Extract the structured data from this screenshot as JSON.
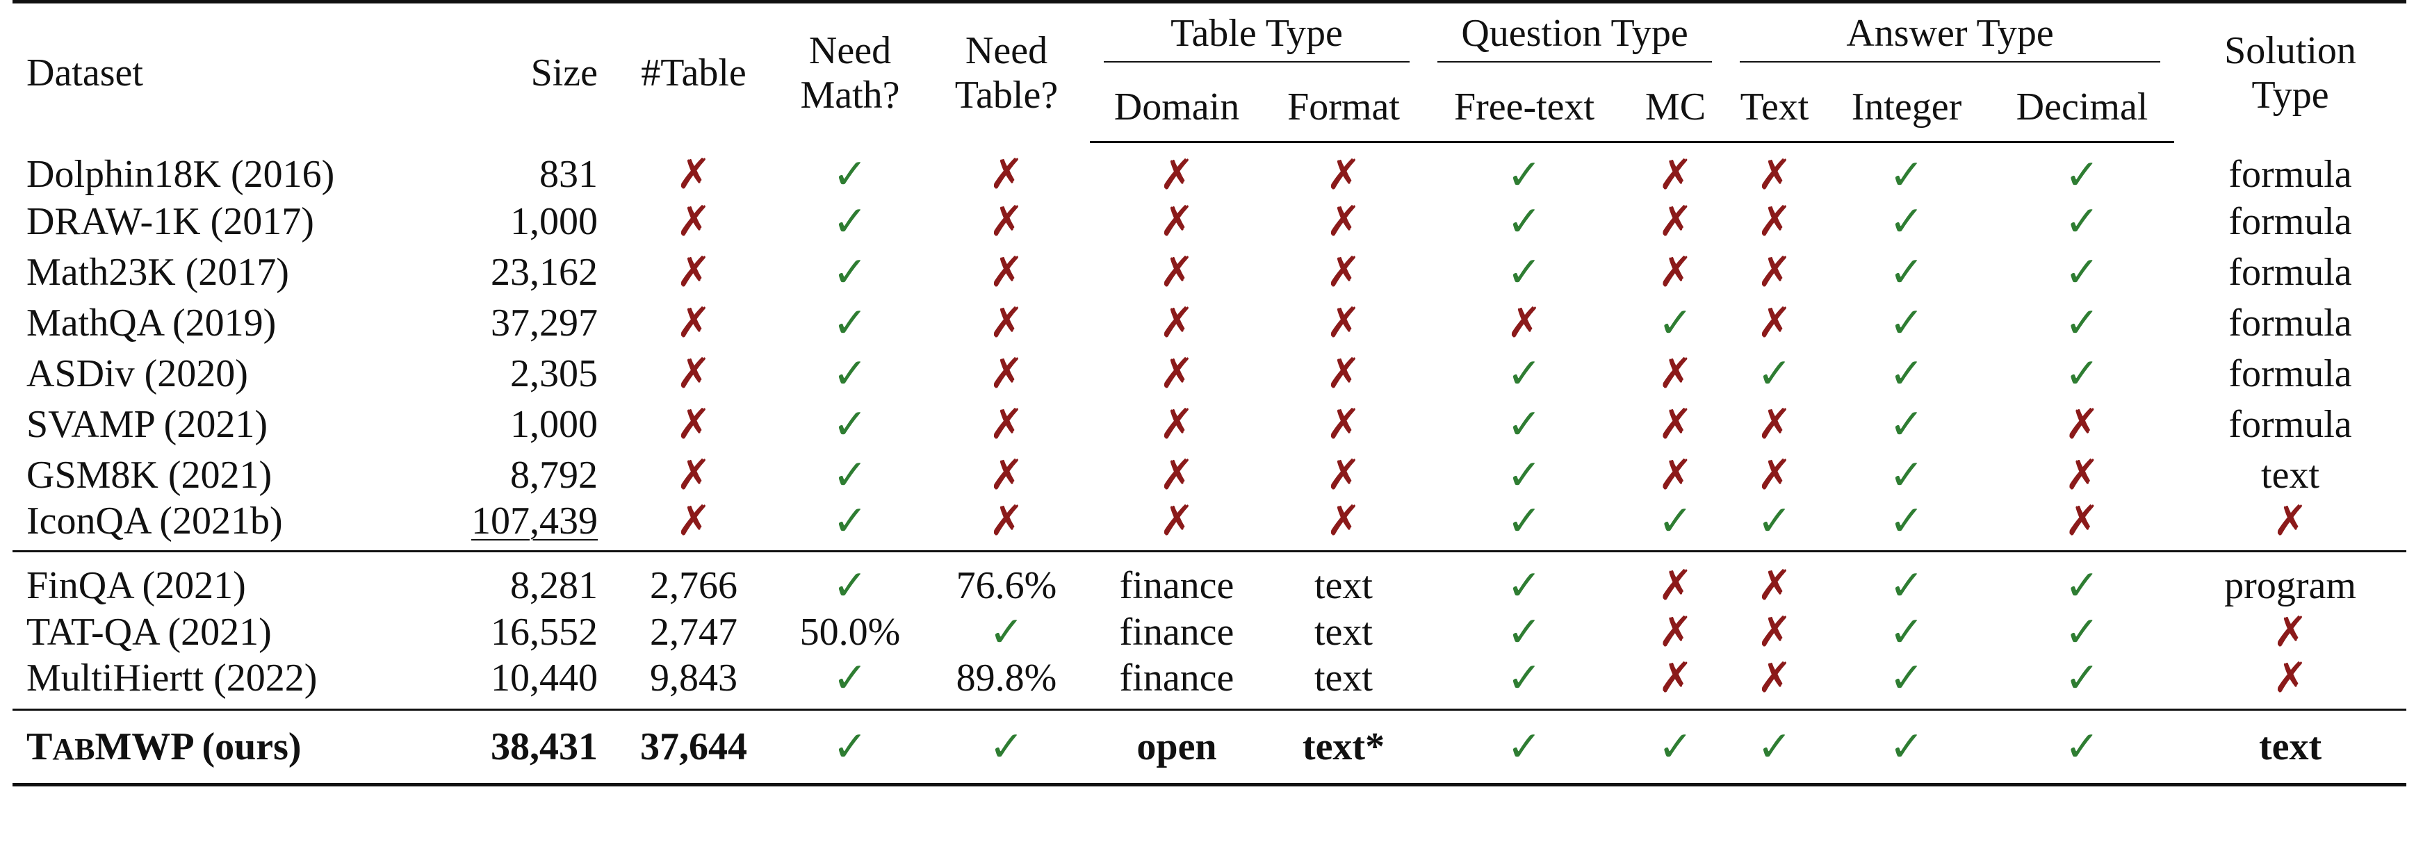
{
  "header": {
    "dataset": "Dataset",
    "size": "Size",
    "table_count": "#Table",
    "need_math": [
      "Need",
      "Math?"
    ],
    "need_table": [
      "Need",
      "Table?"
    ],
    "table_type": "Table Type",
    "domain": "Domain",
    "format": "Format",
    "question_type": "Question Type",
    "free_text": "Free-text",
    "mc": "MC",
    "answer_type": "Answer Type",
    "text": "Text",
    "integer": "Integer",
    "decimal": "Decimal",
    "solution_type": [
      "Solution",
      "Type"
    ]
  },
  "marks": {
    "check": "✓",
    "cross": "✗"
  },
  "rows_group1": [
    {
      "dataset": "Dolphin18K (2016)",
      "size": "831",
      "table": "x",
      "math": "c",
      "needtable": "x",
      "domain": "x",
      "format": "x",
      "free": "c",
      "mc": "x",
      "text": "x",
      "int": "c",
      "dec": "c",
      "sol": "formula"
    },
    {
      "dataset": "DRAW-1K (2017)",
      "size": "1,000",
      "table": "x",
      "math": "c",
      "needtable": "x",
      "domain": "x",
      "format": "x",
      "free": "c",
      "mc": "x",
      "text": "x",
      "int": "c",
      "dec": "c",
      "sol": "formula"
    },
    {
      "dataset": "Math23K (2017)",
      "size": "23,162",
      "table": "x",
      "math": "c",
      "needtable": "x",
      "domain": "x",
      "format": "x",
      "free": "c",
      "mc": "x",
      "text": "x",
      "int": "c",
      "dec": "c",
      "sol": "formula"
    },
    {
      "dataset": "MathQA (2019)",
      "size": "37,297",
      "table": "x",
      "math": "c",
      "needtable": "x",
      "domain": "x",
      "format": "x",
      "free": "x",
      "mc": "c",
      "text": "x",
      "int": "c",
      "dec": "c",
      "sol": "formula"
    },
    {
      "dataset": "ASDiv (2020)",
      "size": "2,305",
      "table": "x",
      "math": "c",
      "needtable": "x",
      "domain": "x",
      "format": "x",
      "free": "c",
      "mc": "x",
      "text": "c",
      "int": "c",
      "dec": "c",
      "sol": "formula"
    },
    {
      "dataset": "SVAMP (2021)",
      "size": "1,000",
      "table": "x",
      "math": "c",
      "needtable": "x",
      "domain": "x",
      "format": "x",
      "free": "c",
      "mc": "x",
      "text": "x",
      "int": "c",
      "dec": "x",
      "sol": "formula"
    },
    {
      "dataset": "GSM8K (2021)",
      "size": "8,792",
      "table": "x",
      "math": "c",
      "needtable": "x",
      "domain": "x",
      "format": "x",
      "free": "c",
      "mc": "x",
      "text": "x",
      "int": "c",
      "dec": "x",
      "sol": "text"
    },
    {
      "dataset": "IconQA (2021b)",
      "size": "107,439",
      "table": "x",
      "math": "c",
      "needtable": "x",
      "domain": "x",
      "format": "x",
      "free": "c",
      "mc": "c",
      "text": "c",
      "int": "c",
      "dec": "x",
      "sol": "x"
    }
  ],
  "rows_group2": [
    {
      "dataset": "FinQA (2021)",
      "size": "8,281",
      "table": "2,766",
      "math": "c",
      "needtable": "76.6%",
      "domain": "finance",
      "format": "text",
      "free": "c",
      "mc": "x",
      "text": "x",
      "int": "c",
      "dec": "c",
      "sol": "program"
    },
    {
      "dataset": "TAT-QA (2021)",
      "size": "16,552",
      "table": "2,747",
      "math": "50.0%",
      "needtable": "c",
      "domain": "finance",
      "format": "text",
      "free": "c",
      "mc": "x",
      "text": "x",
      "int": "c",
      "dec": "c",
      "sol": "x"
    },
    {
      "dataset": "MultiHiertt (2022)",
      "size": "10,440",
      "table": "9,843",
      "math": "c",
      "needtable": "89.8%",
      "domain": "finance",
      "format": "text",
      "free": "c",
      "mc": "x",
      "text": "x",
      "int": "c",
      "dec": "c",
      "sol": "x"
    }
  ],
  "ours": {
    "name_T": "T",
    "name_AB": "AB",
    "name_rest": "MWP (ours)",
    "size": "38,431",
    "table": "37,644",
    "math": "c",
    "needtable": "c",
    "domain": "open",
    "format": "text*",
    "free": "c",
    "mc": "c",
    "text": "c",
    "int": "c",
    "dec": "c",
    "sol": "text"
  },
  "colors": {
    "check": "#2e7d32",
    "cross": "#8b1a1a"
  }
}
